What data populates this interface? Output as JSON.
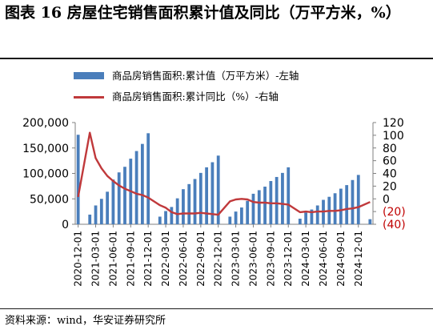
{
  "title": "图表  16  房屋住宅销售面积累计值及同比（万平方米，%）",
  "legend": {
    "bar_label": "商品房销售面积:累计值（万平方米）-左轴",
    "line_label": "商品房销售面积:累计同比（%）-右轴"
  },
  "source": "资料来源：wind，华安证券研究所",
  "colors": {
    "bar": "#4a7ebb",
    "line": "#c0393b",
    "negative_tick": "#c00000",
    "axis": "#808080"
  },
  "chart_data": {
    "type": "bar",
    "title": "",
    "xlabel": "",
    "ylabel": "",
    "ylim": [
      0,
      200000
    ],
    "y2lim": [
      -40,
      120
    ],
    "y_ticks": [
      "0",
      "50,000",
      "100,000",
      "150,000",
      "200,000"
    ],
    "y2_ticks": [
      "(40)",
      "(20)",
      "0",
      "20",
      "40",
      "60",
      "80",
      "100",
      "120"
    ],
    "x_tick_labels": [
      "2020-12-01",
      "2021-03-01",
      "2021-06-01",
      "2021-09-01",
      "2021-12-01",
      "2022-03-01",
      "2022-06-01",
      "2022-09-01",
      "2022-12-01",
      "2023-03-01",
      "2023-06-01",
      "2023-09-01",
      "2023-12-01",
      "2024-03-01",
      "2024-06-01",
      "2024-09-01",
      "2024-12-01"
    ],
    "x_tick_every": 3,
    "categories": [
      "2020-12",
      "2021-01",
      "2021-02",
      "2021-03",
      "2021-04",
      "2021-05",
      "2021-06",
      "2021-07",
      "2021-08",
      "2021-09",
      "2021-10",
      "2021-11",
      "2021-12",
      "2022-01",
      "2022-02",
      "2022-03",
      "2022-04",
      "2022-05",
      "2022-06",
      "2022-07",
      "2022-08",
      "2022-09",
      "2022-10",
      "2022-11",
      "2022-12",
      "2023-01",
      "2023-02",
      "2023-03",
      "2023-04",
      "2023-05",
      "2023-06",
      "2023-07",
      "2023-08",
      "2023-09",
      "2023-10",
      "2023-11",
      "2023-12",
      "2024-01",
      "2024-02",
      "2024-03",
      "2024-04",
      "2024-05",
      "2024-06",
      "2024-07",
      "2024-08",
      "2024-09",
      "2024-10",
      "2024-11",
      "2024-12",
      "2025-01",
      "2025-02"
    ],
    "series": [
      {
        "name": "商品房销售面积:累计值（万平方米）-左轴",
        "axis": "left",
        "kind": "bar",
        "values": [
          176000,
          null,
          19000,
          37000,
          50000,
          64000,
          88000,
          102000,
          113000,
          129000,
          144000,
          158000,
          179000,
          null,
          15000,
          26000,
          34000,
          51000,
          69000,
          79000,
          89000,
          101000,
          112000,
          122000,
          135000,
          null,
          15000,
          25000,
          33000,
          46000,
          60000,
          67000,
          74000,
          85000,
          93000,
          101000,
          112000,
          null,
          11000,
          23000,
          29000,
          37000,
          48000,
          54000,
          61000,
          70000,
          77000,
          87000,
          97000,
          null,
          10000
        ]
      },
      {
        "name": "商品房销售面积:累计同比（%）-右轴",
        "axis": "right",
        "kind": "line",
        "values": [
          3,
          null,
          104,
          64,
          48,
          36,
          28,
          21,
          16,
          12,
          8,
          6,
          2,
          null,
          -10,
          -14,
          -21,
          -24,
          -23,
          -23,
          -23,
          -22,
          -23,
          -24,
          -25,
          null,
          -4,
          -1,
          0,
          -1,
          -5,
          -6,
          -6,
          -7,
          -7,
          -8,
          -9,
          null,
          -21,
          -20,
          -21,
          -20,
          -20,
          -19,
          -19,
          -18,
          -16,
          -15,
          -13,
          null,
          -5
        ]
      }
    ],
    "grid": false,
    "legend_position": "top"
  }
}
